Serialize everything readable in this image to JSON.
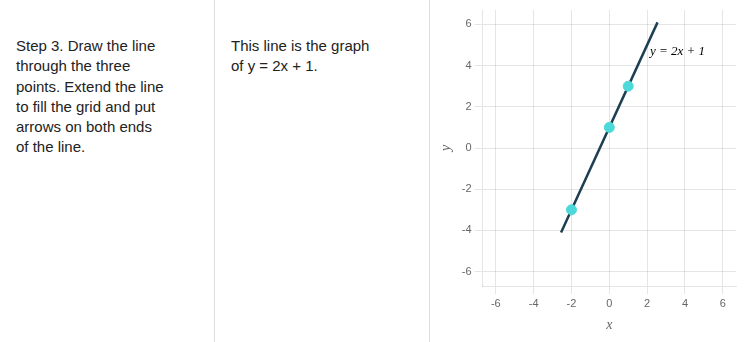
{
  "chart_data": {
    "type": "scatter",
    "annotations": [
      {
        "text": "Step 3. Draw the line\nthrough the three\npoints. Extend the line\nto fill the grid and put\narrows on both ends\nof the line."
      },
      {
        "text": "This line is the graph\nof y = 2x + 1."
      },
      {
        "text": "y = 2x + 1",
        "x": 2.15,
        "y": 4.7
      }
    ],
    "x_label": "x",
    "y_label": "y",
    "series": [
      {
        "type": "line",
        "color": "#1c3f52",
        "x": [
          -2.55,
          2.55
        ],
        "values": [
          -4.1,
          6.1
        ]
      },
      {
        "type": "scatter",
        "color": "#4dd9d9",
        "x": [
          -2,
          0,
          1
        ],
        "values": [
          -3,
          1,
          3
        ]
      }
    ],
    "xlim": [
      -6.7,
      6.7
    ],
    "ylim": [
      -6.7,
      6.7
    ],
    "xticks": [
      -6,
      -4,
      -2,
      0,
      2,
      4,
      6
    ],
    "yticks": [
      -6,
      -4,
      -2,
      0,
      2,
      4,
      6
    ],
    "grid": true
  }
}
